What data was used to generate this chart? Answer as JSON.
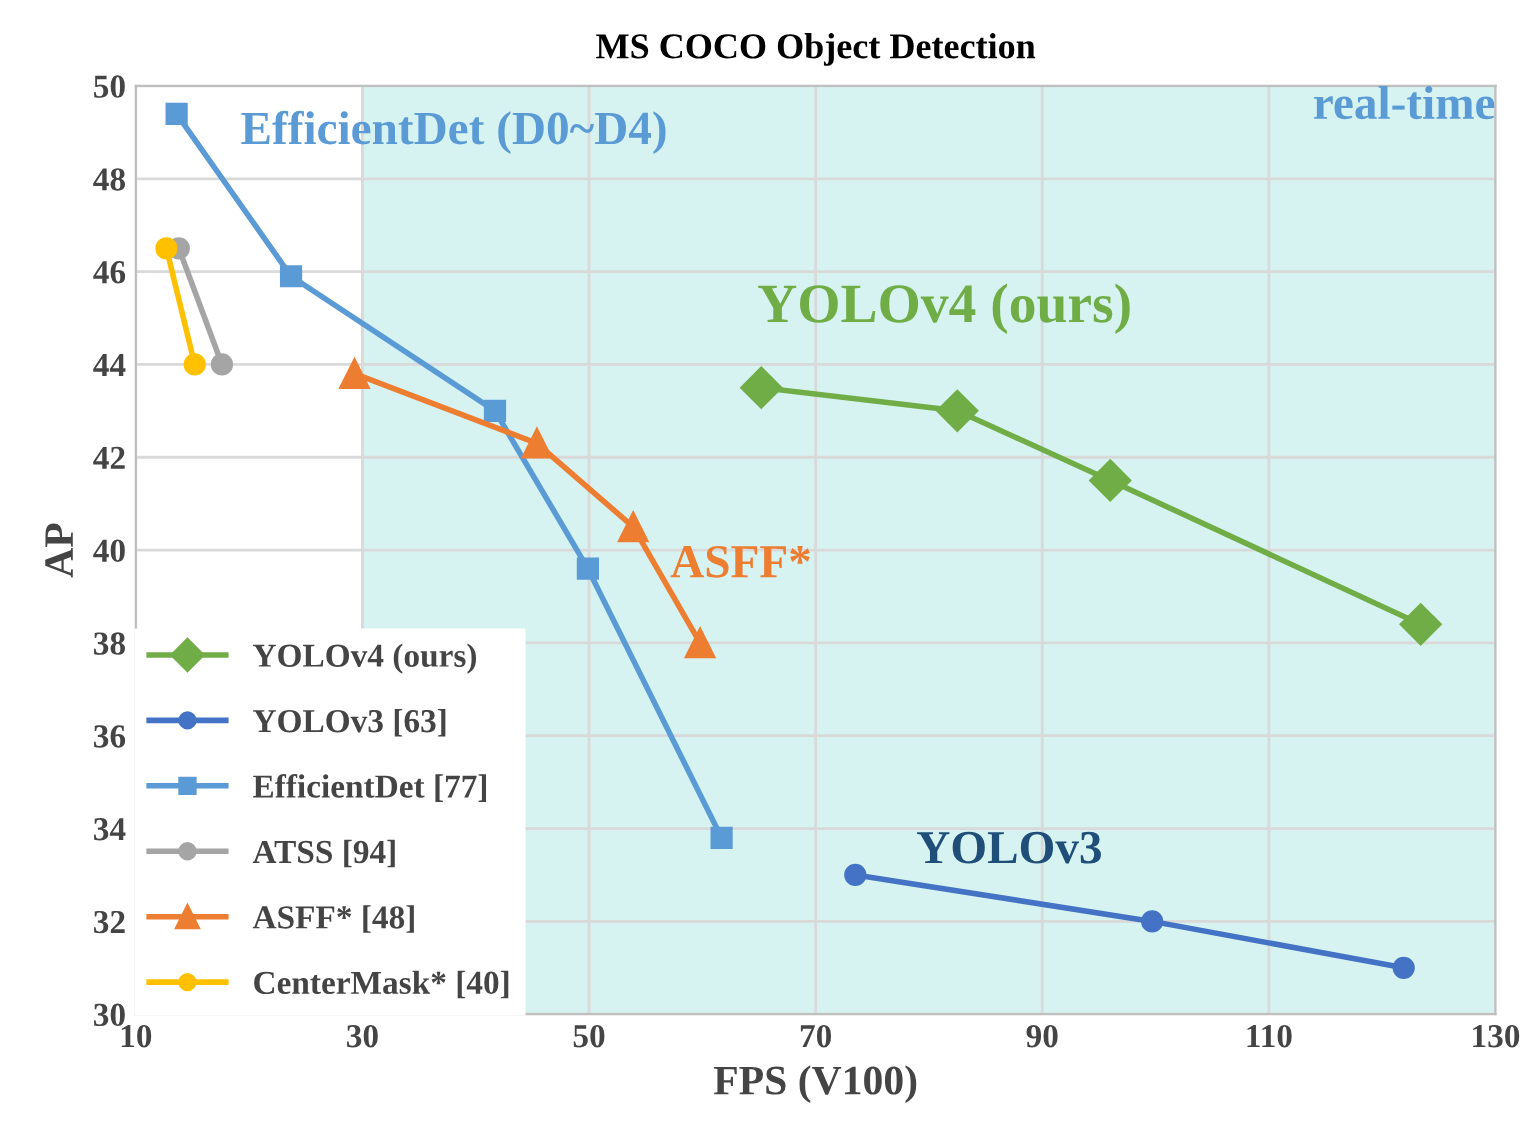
{
  "chart_data": {
    "type": "line",
    "title": "MS COCO Object Detection",
    "xlabel": "FPS (V100)",
    "ylabel": "AP",
    "xlim": [
      10,
      130
    ],
    "xticks": [
      10,
      30,
      50,
      70,
      90,
      110,
      130
    ],
    "ylim": [
      30,
      50
    ],
    "yticks": [
      30,
      32,
      34,
      36,
      38,
      40,
      42,
      44,
      46,
      48,
      50
    ],
    "grid": true,
    "legend": "bottom left",
    "series": [
      {
        "name": "YOLOv4 (ours)",
        "color": "#70ad47",
        "marker": "diamond",
        "x": [
          65.2,
          82.5,
          96.0,
          123.4
        ],
        "values": [
          43.5,
          43.0,
          41.5,
          38.4
        ]
      },
      {
        "name": "YOLOv3 [63]",
        "color": "#4472c4",
        "marker": "circle",
        "x": [
          73.5,
          99.7,
          121.9
        ],
        "values": [
          33.0,
          32.0,
          31.0
        ]
      },
      {
        "name": "EfficientDet [77]",
        "color": "#5b9bd5",
        "marker": "square",
        "x": [
          13.6,
          23.7,
          41.7,
          49.9,
          61.7
        ],
        "values": [
          49.4,
          45.9,
          43.0,
          39.6,
          33.8
        ]
      },
      {
        "name": "ATSS [94]",
        "color": "#a5a5a5",
        "marker": "circle",
        "x": [
          13.8,
          17.6
        ],
        "values": [
          46.5,
          44.0
        ]
      },
      {
        "name": "ASFF* [48]",
        "color": "#ed7d31",
        "marker": "triangle",
        "x": [
          29.3,
          45.4,
          53.9,
          59.8
        ],
        "values": [
          43.8,
          42.3,
          40.5,
          38.0
        ]
      },
      {
        "name": "CenterMask* [40]",
        "color": "#ffc000",
        "marker": "circle",
        "x": [
          12.7,
          15.2
        ],
        "values": [
          46.5,
          44.0
        ]
      }
    ],
    "bands": [
      {
        "axis": "x",
        "from": 30,
        "to": 130,
        "label": "real-time",
        "color": "#d6f3f1"
      }
    ],
    "annotations": [
      "EfficientDet (D0~D4)",
      "YOLOv4 (ours)",
      "ASFF*",
      "YOLOv3"
    ]
  }
}
